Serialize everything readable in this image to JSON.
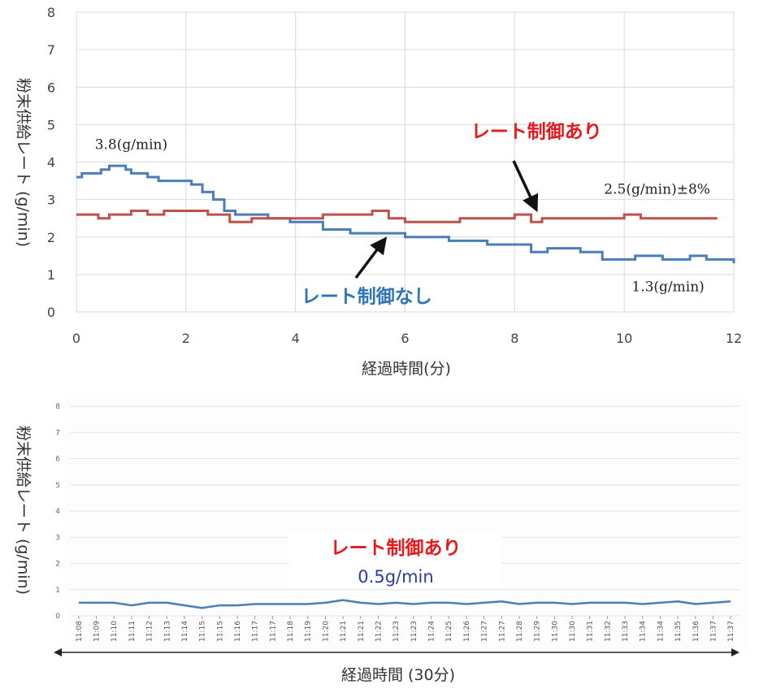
{
  "chart_data": [
    {
      "type": "line",
      "xlabel": "経過時間(分)",
      "ylabel": "粉末供給レート (g/min)",
      "xlim": [
        0,
        12
      ],
      "ylim": [
        0,
        8
      ],
      "xticks": [
        "0",
        "2",
        "4",
        "6",
        "8",
        "10",
        "12"
      ],
      "yticks": [
        "0",
        "1",
        "2",
        "3",
        "4",
        "5",
        "6",
        "7",
        "8"
      ],
      "grid": true,
      "series": [
        {
          "name": "レート制御なし",
          "color": "#4a7ebb",
          "x": [
            0,
            0.1,
            0.45,
            0.6,
            0.9,
            1.0,
            1.3,
            1.5,
            1.9,
            2.1,
            2.3,
            2.5,
            2.7,
            2.9,
            3.2,
            3.5,
            3.9,
            4.5,
            5.0,
            5.6,
            6.0,
            6.8,
            7.5,
            8.3,
            8.6,
            9.2,
            9.6,
            10.2,
            10.7,
            11.2,
            11.5,
            12.0
          ],
          "y": [
            3.6,
            3.7,
            3.8,
            3.9,
            3.8,
            3.7,
            3.6,
            3.5,
            3.5,
            3.4,
            3.2,
            3.0,
            2.7,
            2.6,
            2.6,
            2.5,
            2.4,
            2.2,
            2.1,
            2.1,
            2.0,
            1.9,
            1.8,
            1.6,
            1.7,
            1.6,
            1.4,
            1.5,
            1.4,
            1.5,
            1.4,
            1.3
          ]
        },
        {
          "name": "レート制御あり",
          "color": "#c0504d",
          "x": [
            0,
            0.4,
            0.6,
            1.0,
            1.3,
            1.6,
            2.0,
            2.4,
            2.8,
            3.2,
            3.6,
            4.0,
            4.5,
            5.0,
            5.4,
            5.7,
            6.0,
            6.5,
            7.0,
            7.5,
            8.0,
            8.3,
            8.5,
            9.0,
            9.5,
            10.0,
            10.3,
            10.8,
            11.2,
            11.7
          ],
          "y": [
            2.6,
            2.5,
            2.6,
            2.7,
            2.6,
            2.7,
            2.7,
            2.6,
            2.4,
            2.5,
            2.5,
            2.5,
            2.6,
            2.6,
            2.7,
            2.5,
            2.4,
            2.4,
            2.5,
            2.5,
            2.6,
            2.4,
            2.5,
            2.5,
            2.5,
            2.6,
            2.5,
            2.5,
            2.5,
            2.5
          ]
        }
      ],
      "annotations": [
        {
          "text": "3.8(g/min)",
          "x": 1.0,
          "y": 4.35,
          "color": "#222222"
        },
        {
          "text": "レート制御あり",
          "x": 8.4,
          "y": 4.65,
          "color": "#e8191c",
          "bold": true
        },
        {
          "text": "2.5(g/min)±8%",
          "x": 10.6,
          "y": 3.15,
          "color": "#222222"
        },
        {
          "text": "レート制御なし",
          "x": 5.3,
          "y": 0.25,
          "color": "#2e75b6",
          "bold": true
        },
        {
          "text": "1.3(g/min)",
          "x": 10.8,
          "y": 0.55,
          "color": "#222222"
        }
      ]
    },
    {
      "type": "line",
      "xlabel": "経過時間 (30分)",
      "ylabel": "粉末供給レート (g/min)",
      "ylim": [
        0,
        8
      ],
      "yticks": [
        "0",
        "1",
        "2",
        "3",
        "4",
        "5",
        "6",
        "7",
        "8"
      ],
      "grid": true,
      "categories": [
        "11:08",
        "11:09",
        "11:10",
        "11:11",
        "11:12",
        "11:13",
        "11:14",
        "11:15",
        "11:15",
        "11:16",
        "11:17",
        "11:17",
        "11:18",
        "11:19",
        "11:20",
        "11:21",
        "11:21",
        "11:22",
        "11:23",
        "11:23",
        "11:24",
        "11:25",
        "11:26",
        "11:27",
        "11:27",
        "11:28",
        "11:29",
        "11:30",
        "11:30",
        "11:31",
        "11:32",
        "11:33",
        "11:34",
        "11:34",
        "11:35",
        "11:36",
        "11:37",
        "11:37"
      ],
      "series": [
        {
          "name": "レート制御あり",
          "color": "#4a7ebb",
          "values": [
            0.5,
            0.5,
            0.5,
            0.4,
            0.5,
            0.5,
            0.4,
            0.3,
            0.4,
            0.4,
            0.45,
            0.45,
            0.45,
            0.45,
            0.5,
            0.6,
            0.5,
            0.45,
            0.5,
            0.45,
            0.5,
            0.5,
            0.45,
            0.5,
            0.55,
            0.45,
            0.5,
            0.5,
            0.45,
            0.5,
            0.5,
            0.5,
            0.45,
            0.5,
            0.55,
            0.45,
            0.5,
            0.55
          ]
        }
      ],
      "annotations": [
        {
          "text": "レート制御あり",
          "color": "#e8191c",
          "bold": true
        },
        {
          "text": "0.5g/min",
          "color": "#2e3aa0"
        }
      ]
    }
  ]
}
